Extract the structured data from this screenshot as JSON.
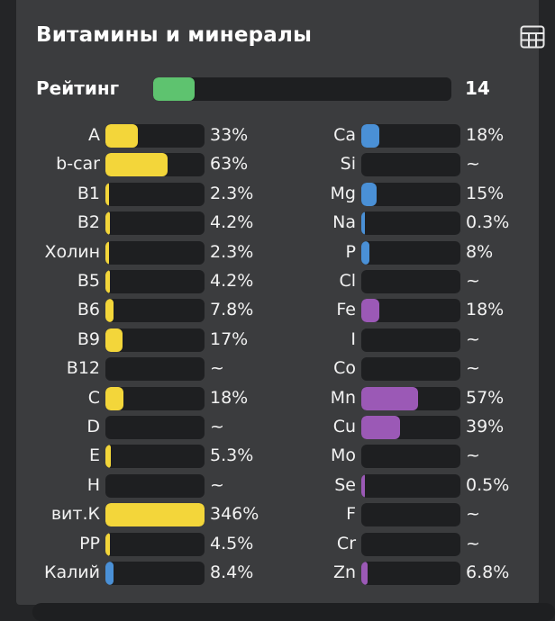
{
  "panel": {
    "title": "Витамины и минералы",
    "table_icon": "table-icon"
  },
  "rating": {
    "label": "Рейтинг",
    "value": "14",
    "fraction": 0.14,
    "color": "#5ec36f"
  },
  "colors": {
    "vitamin": "#f3d63a",
    "mineral_blue": "#4a90d6",
    "mineral_purple": "#9b59b6"
  },
  "vitamins": [
    {
      "label": "A",
      "value": "33%",
      "percent": 33,
      "color": "#f3d63a"
    },
    {
      "label": "b-car",
      "value": "63%",
      "percent": 63,
      "color": "#f3d63a"
    },
    {
      "label": "B1",
      "value": "2.3%",
      "percent": 2.3,
      "color": "#f3d63a"
    },
    {
      "label": "B2",
      "value": "4.2%",
      "percent": 4.2,
      "color": "#f3d63a"
    },
    {
      "label": "Холин",
      "value": "2.3%",
      "percent": 2.3,
      "color": "#f3d63a"
    },
    {
      "label": "B5",
      "value": "4.2%",
      "percent": 4.2,
      "color": "#f3d63a"
    },
    {
      "label": "B6",
      "value": "7.8%",
      "percent": 7.8,
      "color": "#f3d63a"
    },
    {
      "label": "B9",
      "value": "17%",
      "percent": 17,
      "color": "#f3d63a"
    },
    {
      "label": "B12",
      "value": "~",
      "percent": 0,
      "color": "#f3d63a"
    },
    {
      "label": "C",
      "value": "18%",
      "percent": 18,
      "color": "#f3d63a"
    },
    {
      "label": "D",
      "value": "~",
      "percent": 0,
      "color": "#f3d63a"
    },
    {
      "label": "E",
      "value": "5.3%",
      "percent": 5.3,
      "color": "#f3d63a"
    },
    {
      "label": "H",
      "value": "~",
      "percent": 0,
      "color": "#f3d63a"
    },
    {
      "label": "вит.К",
      "value": "346%",
      "percent": 100,
      "color": "#f3d63a"
    },
    {
      "label": "PP",
      "value": "4.5%",
      "percent": 4.5,
      "color": "#f3d63a"
    },
    {
      "label": "Калий",
      "value": "8.4%",
      "percent": 8.4,
      "color": "#4a90d6"
    }
  ],
  "minerals": [
    {
      "label": "Ca",
      "value": "18%",
      "percent": 18,
      "color": "#4a90d6"
    },
    {
      "label": "Si",
      "value": "~",
      "percent": 0,
      "color": "#4a90d6"
    },
    {
      "label": "Mg",
      "value": "15%",
      "percent": 15,
      "color": "#4a90d6"
    },
    {
      "label": "Na",
      "value": "0.3%",
      "percent": 0.3,
      "color": "#4a90d6"
    },
    {
      "label": "P",
      "value": "8%",
      "percent": 8,
      "color": "#4a90d6"
    },
    {
      "label": "Cl",
      "value": "~",
      "percent": 0,
      "color": "#4a90d6"
    },
    {
      "label": "Fe",
      "value": "18%",
      "percent": 18,
      "color": "#9b59b6"
    },
    {
      "label": "I",
      "value": "~",
      "percent": 0,
      "color": "#9b59b6"
    },
    {
      "label": "Co",
      "value": "~",
      "percent": 0,
      "color": "#9b59b6"
    },
    {
      "label": "Mn",
      "value": "57%",
      "percent": 57,
      "color": "#9b59b6"
    },
    {
      "label": "Cu",
      "value": "39%",
      "percent": 39,
      "color": "#9b59b6"
    },
    {
      "label": "Mo",
      "value": "~",
      "percent": 0,
      "color": "#9b59b6"
    },
    {
      "label": "Se",
      "value": "0.5%",
      "percent": 0.5,
      "color": "#9b59b6"
    },
    {
      "label": "F",
      "value": "~",
      "percent": 0,
      "color": "#9b59b6"
    },
    {
      "label": "Cr",
      "value": "~",
      "percent": 0,
      "color": "#9b59b6"
    },
    {
      "label": "Zn",
      "value": "6.8%",
      "percent": 6.8,
      "color": "#9b59b6"
    }
  ]
}
